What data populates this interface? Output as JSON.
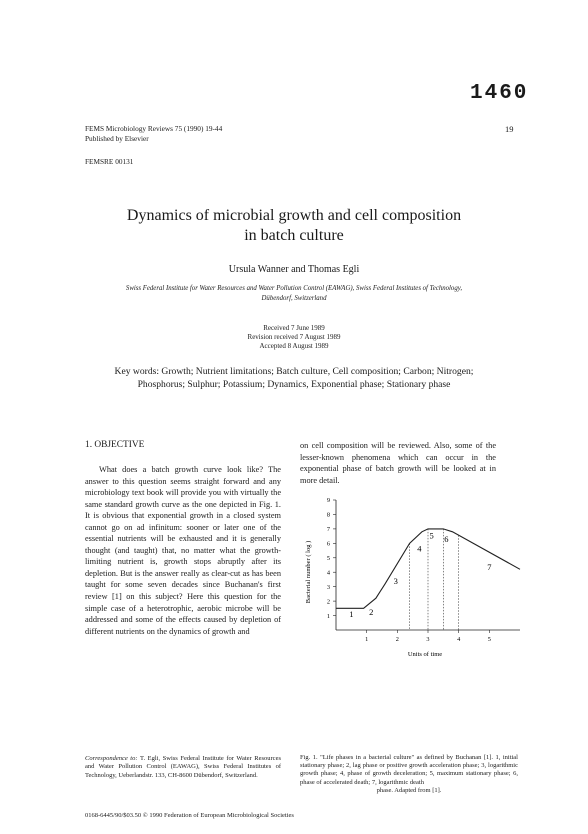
{
  "stamp_number": "1460",
  "header": {
    "journal_line": "FEMS Microbiology Reviews 75 (1990) 19-44",
    "publisher_line": "Published by Elsevier",
    "code": "FEMSRE 00131",
    "page_number": "19"
  },
  "title_lines": [
    "Dynamics of microbial growth and cell composition",
    "in batch culture"
  ],
  "authors": "Ursula Wanner and Thomas Egli",
  "affiliation_lines": [
    "Swiss Federal Institute for Water Resources and Water Pollution Control (EAWAG), Swiss Federal Institutes of Technology,",
    "Dübendorf, Switzerland"
  ],
  "dates": [
    "Received 7 June 1989",
    "Revision received 7 August 1989",
    "Accepted 8 August 1989"
  ],
  "keywords_lines": [
    "Key words: Growth; Nutrient limitations; Batch culture, Cell composition; Carbon; Nitrogen;",
    "Phosphorus; Sulphur; Potassium; Dynamics, Exponential phase; Stationary phase"
  ],
  "section_heading": "1. OBJECTIVE",
  "left_column_text": "What does a batch growth curve look like? The answer to this question seems straight forward and any microbiology text book will provide you with virtually the same standard growth curve as the one depicted in Fig. 1. It is obvious that exponential growth in a closed system cannot go on ad infinitum: sooner or later one of the essential nutrients will be exhausted and it is generally thought (and taught) that, no matter what the growth-limiting nutrient is, growth stops abruptly after its depletion. But is the answer really as clear-cut as has been taught for some seven decades since Buchanan's first review [1] on this subject? Here this question for the simple case of a heterotrophic, aerobic microbe will be addressed and some of the effects caused by depletion of different nutrients on the dynamics of growth and",
  "right_column_text": "on cell composition will be reviewed. Also, some of the lesser-known phenomena which can occur in the exponential phase of batch growth will be looked at in more detail.",
  "correspondence": {
    "label": "Correspondence to:",
    "text": "T. Egli, Swiss Federal Institute for Water Resources and Water Pollution Control (EAWAG), Swiss Federal Institutes of Technology, Ueberlandstr. 133, CH-8600 Dübendorf, Switzerland."
  },
  "issn_line": "0168-6445/90/$03.50 © 1990 Federation of European Microbiological Societies",
  "caption": {
    "main": "Fig. 1. \"Life phases in a bacterial culture\" as defined by Buchanan [1]. 1, initial stationary phase; 2, lag phase or positive growth acceleration phase; 3, logarithmic growth phase; 4, phase of growth deceleration; 5, maximum stationary phase; 6, phase of accelerated death; 7, logarithmic death",
    "last": "phase. Adapted from [1]."
  },
  "figure": {
    "ylabel": "Bacterial number ( log )",
    "xlabel": "Units of time",
    "y_ticks": [
      "1",
      "2",
      "3",
      "4",
      "5",
      "6",
      "7",
      "8",
      "9"
    ],
    "x_ticks": [
      "1",
      "2",
      "3",
      "4",
      "5"
    ],
    "phase_labels": [
      "1",
      "2",
      "3",
      "4",
      "5",
      "6",
      "7"
    ]
  },
  "chart_data": {
    "type": "line",
    "title": "",
    "xlabel": "Units of time",
    "ylabel": "Bacterial number ( log )",
    "xlim": [
      0,
      6
    ],
    "ylim": [
      0,
      9
    ],
    "grid": false,
    "series": [
      {
        "x": [
          0,
          0.4,
          0.9,
          1.3,
          1.6,
          2.4,
          2.8,
          3.0,
          3.5,
          3.8,
          6.0
        ],
        "y": [
          1.5,
          1.5,
          1.5,
          2.2,
          3.2,
          6.0,
          6.8,
          7.0,
          7.0,
          6.8,
          4.2
        ]
      }
    ],
    "phase_boundaries_x": [
      2.4,
      3.0,
      3.5,
      4.0
    ],
    "annotations": [
      "1",
      "2",
      "3",
      "4",
      "5",
      "6",
      "7"
    ]
  }
}
